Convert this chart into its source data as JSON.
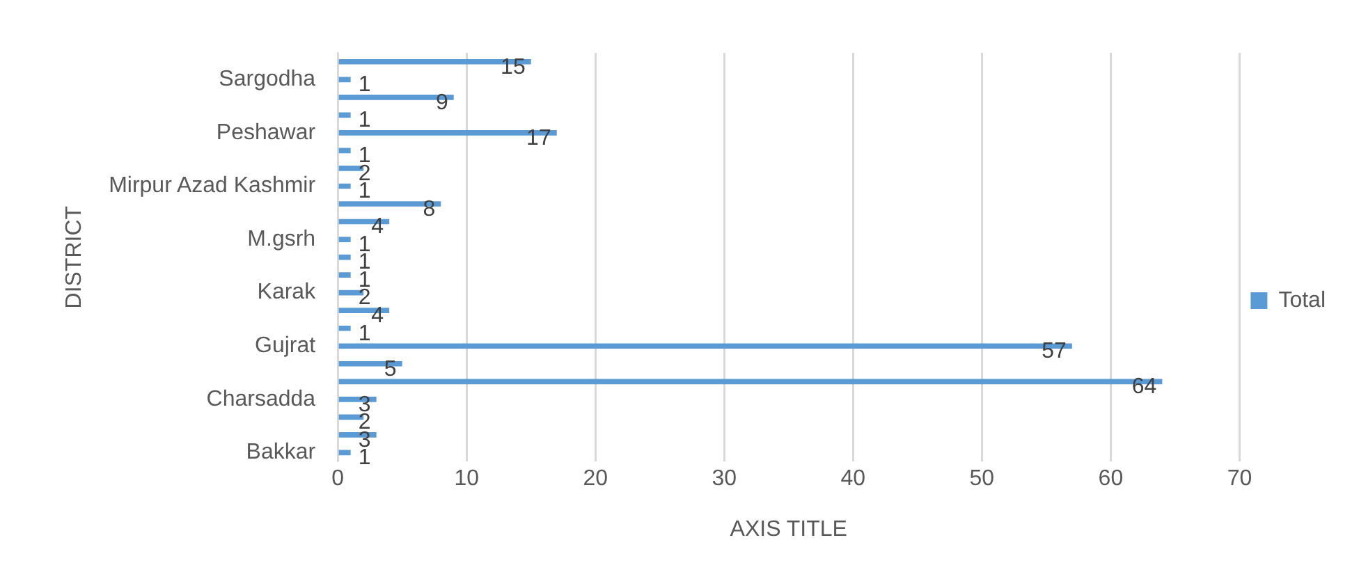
{
  "chart_data": {
    "type": "bar",
    "orientation": "horizontal",
    "xlabel": "AXIS TITLE",
    "ylabel": "DISTRICT",
    "categories": [
      null,
      "Sargodha",
      null,
      null,
      "Peshawar",
      null,
      null,
      "Mirpur Azad Kashmir",
      null,
      null,
      "M.gsrh",
      null,
      null,
      "Karak",
      null,
      null,
      "Gujrat",
      null,
      null,
      "Charsadda",
      null,
      null,
      "Bakkar"
    ],
    "series": [
      {
        "name": "Total",
        "color": "#5b9bd5",
        "values": [
          15,
          1,
          9,
          1,
          17,
          1,
          2,
          1,
          8,
          4,
          1,
          1,
          1,
          2,
          4,
          1,
          57,
          5,
          64,
          3,
          2,
          3,
          1
        ]
      }
    ],
    "xlim": [
      0,
      70
    ],
    "xticks": [
      0,
      10,
      20,
      30,
      40,
      50,
      60,
      70
    ],
    "grid": "x",
    "legend": "right",
    "data_labels": true
  }
}
